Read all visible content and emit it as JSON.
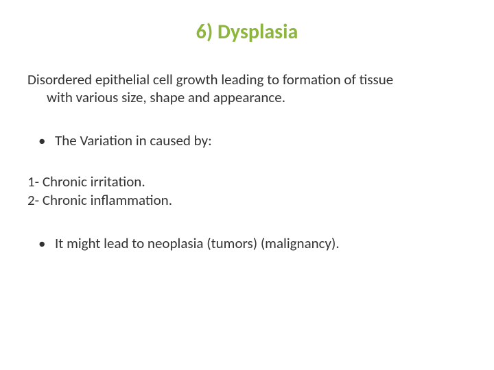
{
  "title": {
    "text": "6) Dysplasia",
    "color": "#8cb63c",
    "fontsize": 30,
    "fontweight": 700
  },
  "definition": {
    "line1": "Disordered epithelial cell growth leading to formation of tissue",
    "line2": "with various size, shape and appearance.",
    "fontsize": 21,
    "color": "#333333"
  },
  "cause_heading": {
    "text": "The Variation in caused by:",
    "fontsize": 21
  },
  "causes": [
    "1- Chronic irritation.",
    "2- Chronic inflammation."
  ],
  "outcome": {
    "text": "It might lead to neoplasia (tumors) (malignancy).",
    "fontsize": 21
  },
  "background_color": "#ffffff"
}
